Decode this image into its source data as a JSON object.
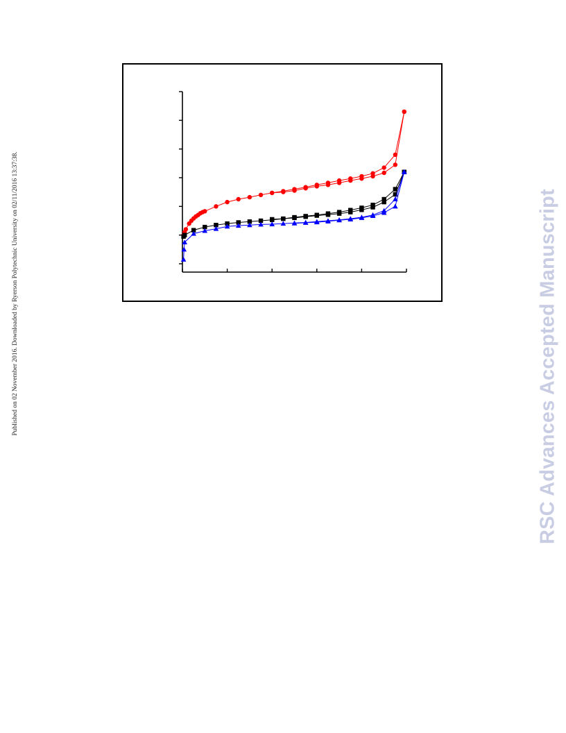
{
  "side_note": "Published on 02 November 2016. Downloaded by Ryerson Polytechnic University on 02/11/2016 13:37:38.",
  "watermark": "RSC Advances Accepted Manuscript",
  "chart_data": {
    "type": "line",
    "title": "",
    "xlabel": "",
    "ylabel": "",
    "xlim": [
      0,
      1
    ],
    "ylim": [
      0,
      6
    ],
    "x_tick_values": [
      0,
      0.2,
      0.4,
      0.6,
      0.8,
      1.0
    ],
    "y_tick_values": [
      0,
      1,
      2,
      3,
      4,
      5,
      6
    ],
    "tick_labels_visible": false,
    "grid": false,
    "legend": "none",
    "series": [
      {
        "color": "#ff0000",
        "marker": "circle",
        "points": [
          [
            0.005,
            1.0
          ],
          [
            0.01,
            1.1
          ],
          [
            0.015,
            1.2
          ],
          [
            0.03,
            1.4
          ],
          [
            0.04,
            1.5
          ],
          [
            0.05,
            1.58
          ],
          [
            0.06,
            1.65
          ],
          [
            0.07,
            1.7
          ],
          [
            0.08,
            1.76
          ],
          [
            0.09,
            1.8
          ],
          [
            0.1,
            1.83
          ],
          [
            0.15,
            2.0
          ],
          [
            0.2,
            2.15
          ],
          [
            0.25,
            2.25
          ],
          [
            0.3,
            2.32
          ],
          [
            0.35,
            2.4
          ],
          [
            0.4,
            2.47
          ],
          [
            0.45,
            2.53
          ],
          [
            0.5,
            2.6
          ],
          [
            0.55,
            2.67
          ],
          [
            0.6,
            2.75
          ],
          [
            0.65,
            2.82
          ],
          [
            0.7,
            2.9
          ],
          [
            0.75,
            2.97
          ],
          [
            0.8,
            3.05
          ],
          [
            0.85,
            3.15
          ],
          [
            0.9,
            3.35
          ],
          [
            0.95,
            3.8
          ],
          [
            0.99,
            5.3
          ]
        ]
      },
      {
        "color": "#ff0000",
        "marker": "circle",
        "points": [
          [
            0.99,
            5.3
          ],
          [
            0.95,
            3.45
          ],
          [
            0.9,
            3.17
          ],
          [
            0.85,
            3.05
          ],
          [
            0.8,
            2.97
          ],
          [
            0.75,
            2.9
          ],
          [
            0.7,
            2.82
          ],
          [
            0.65,
            2.75
          ],
          [
            0.6,
            2.7
          ],
          [
            0.55,
            2.63
          ],
          [
            0.5,
            2.55
          ],
          [
            0.45,
            2.5
          ],
          [
            0.4,
            2.47
          ]
        ]
      },
      {
        "color": "#000000",
        "marker": "square",
        "points": [
          [
            0.005,
            0.95
          ],
          [
            0.01,
            1.0
          ],
          [
            0.05,
            1.17
          ],
          [
            0.1,
            1.28
          ],
          [
            0.15,
            1.35
          ],
          [
            0.2,
            1.4
          ],
          [
            0.25,
            1.44
          ],
          [
            0.3,
            1.47
          ],
          [
            0.35,
            1.5
          ],
          [
            0.4,
            1.53
          ],
          [
            0.45,
            1.57
          ],
          [
            0.5,
            1.62
          ],
          [
            0.55,
            1.66
          ],
          [
            0.6,
            1.7
          ],
          [
            0.65,
            1.75
          ],
          [
            0.7,
            1.8
          ],
          [
            0.75,
            1.87
          ],
          [
            0.8,
            1.95
          ],
          [
            0.85,
            2.05
          ],
          [
            0.9,
            2.25
          ],
          [
            0.95,
            2.6
          ],
          [
            0.99,
            3.2
          ]
        ]
      },
      {
        "color": "#000000",
        "marker": "square",
        "points": [
          [
            0.99,
            3.2
          ],
          [
            0.95,
            2.42
          ],
          [
            0.9,
            2.15
          ],
          [
            0.85,
            1.97
          ],
          [
            0.8,
            1.88
          ],
          [
            0.75,
            1.8
          ],
          [
            0.7,
            1.75
          ],
          [
            0.65,
            1.71
          ],
          [
            0.6,
            1.68
          ],
          [
            0.55,
            1.64
          ],
          [
            0.5,
            1.6
          ],
          [
            0.45,
            1.57
          ],
          [
            0.4,
            1.55
          ]
        ]
      },
      {
        "color": "#0000ff",
        "marker": "triangle",
        "points": [
          [
            0.005,
            0.15
          ],
          [
            0.007,
            0.5
          ],
          [
            0.01,
            0.75
          ],
          [
            0.05,
            1.05
          ],
          [
            0.1,
            1.15
          ],
          [
            0.15,
            1.22
          ],
          [
            0.2,
            1.3
          ],
          [
            0.25,
            1.33
          ],
          [
            0.3,
            1.35
          ],
          [
            0.35,
            1.37
          ],
          [
            0.4,
            1.38
          ],
          [
            0.45,
            1.4
          ],
          [
            0.5,
            1.42
          ],
          [
            0.55,
            1.44
          ],
          [
            0.6,
            1.47
          ],
          [
            0.65,
            1.5
          ],
          [
            0.7,
            1.53
          ],
          [
            0.75,
            1.57
          ],
          [
            0.8,
            1.62
          ],
          [
            0.85,
            1.7
          ],
          [
            0.9,
            1.85
          ],
          [
            0.95,
            2.25
          ],
          [
            0.99,
            3.2
          ]
        ]
      },
      {
        "color": "#0000ff",
        "marker": "triangle",
        "points": [
          [
            0.99,
            3.2
          ],
          [
            0.95,
            2.0
          ],
          [
            0.9,
            1.78
          ],
          [
            0.85,
            1.67
          ],
          [
            0.8,
            1.6
          ],
          [
            0.75,
            1.55
          ],
          [
            0.7,
            1.52
          ],
          [
            0.65,
            1.48
          ],
          [
            0.6,
            1.45
          ],
          [
            0.55,
            1.43
          ],
          [
            0.5,
            1.41
          ]
        ]
      }
    ]
  }
}
